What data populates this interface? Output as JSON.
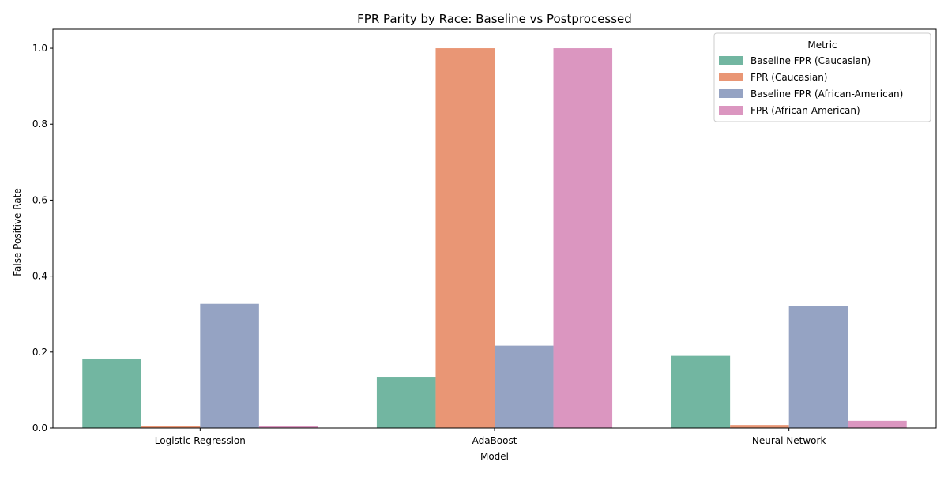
{
  "chart_data": {
    "type": "bar",
    "title": "FPR Parity by Race: Baseline vs Postprocessed",
    "xlabel": "Model",
    "ylabel": "False Positive Rate",
    "categories": [
      "Logistic Regression",
      "AdaBoost",
      "Neural Network"
    ],
    "ylim": [
      0,
      1.05
    ],
    "yticks": [
      0.0,
      0.2,
      0.4,
      0.6,
      0.8,
      1.0
    ],
    "ytick_labels": [
      "0.0",
      "0.2",
      "0.4",
      "0.6",
      "0.8",
      "1.0"
    ],
    "grid": false,
    "legend": {
      "title": "Metric",
      "placement": "top-right"
    },
    "series": [
      {
        "name": "Baseline FPR (Caucasian)",
        "color": "#72b6a1",
        "values": [
          0.183,
          0.133,
          0.19
        ]
      },
      {
        "name": "FPR (Caucasian)",
        "color": "#e99675",
        "values": [
          0.006,
          1.0,
          0.008
        ]
      },
      {
        "name": "Baseline FPR (African-American)",
        "color": "#95a3c3",
        "values": [
          0.327,
          0.217,
          0.321
        ]
      },
      {
        "name": "FPR (African-American)",
        "color": "#db96c0",
        "values": [
          0.006,
          1.0,
          0.019
        ]
      }
    ]
  }
}
